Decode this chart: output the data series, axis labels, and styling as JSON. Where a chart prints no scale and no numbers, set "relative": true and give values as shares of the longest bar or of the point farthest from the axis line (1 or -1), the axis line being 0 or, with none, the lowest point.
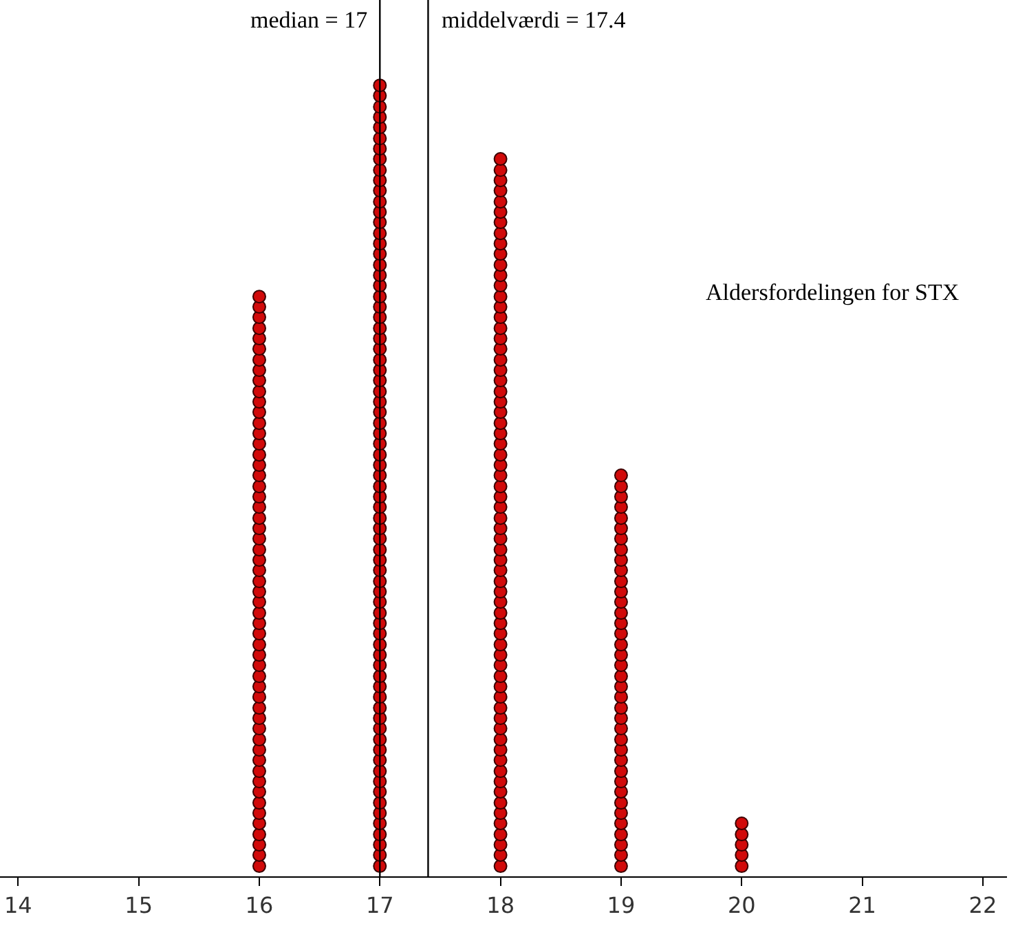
{
  "chart_data": {
    "type": "scatter",
    "relative": true,
    "xlim": [
      13.85,
      22.2
    ],
    "xticks": [
      14,
      15,
      16,
      17,
      18,
      19,
      20,
      21,
      22
    ],
    "marker": "circle",
    "grid": false,
    "annotations": [
      "Aldersfordelingen for STX"
    ],
    "ref_lines": [
      {
        "axis": "x",
        "value": 17,
        "label": "median = 17",
        "color": "#000000"
      },
      {
        "axis": "x",
        "value": 17.4,
        "label": "middelværdi = 17.4",
        "color": "#000000"
      }
    ],
    "series": [
      {
        "color": "#d10a0a",
        "x": [
          16,
          16,
          16,
          16,
          16,
          16,
          16,
          16,
          16,
          16,
          16,
          16,
          16,
          16,
          16,
          16,
          16,
          16,
          16,
          16,
          16,
          16,
          16,
          16,
          16,
          16,
          16,
          16,
          16,
          16,
          16,
          16,
          16,
          16,
          16,
          16,
          16,
          16,
          16,
          16,
          16,
          16,
          16,
          16,
          16,
          16,
          16,
          16,
          16,
          16,
          16,
          16,
          16,
          16,
          16
        ],
        "values": [
          0.013,
          0.027,
          0.04,
          0.053,
          0.067,
          0.08,
          0.093,
          0.107,
          0.12,
          0.133,
          0.147,
          0.16,
          0.173,
          0.187,
          0.2,
          0.213,
          0.227,
          0.24,
          0.253,
          0.267,
          0.28,
          0.293,
          0.307,
          0.32,
          0.333,
          0.347,
          0.36,
          0.373,
          0.387,
          0.4,
          0.413,
          0.427,
          0.44,
          0.453,
          0.467,
          0.48,
          0.493,
          0.507,
          0.52,
          0.533,
          0.547,
          0.56,
          0.573,
          0.587,
          0.6,
          0.613,
          0.627,
          0.64,
          0.653,
          0.667,
          0.68,
          0.693,
          0.707,
          0.72,
          0.733
        ]
      },
      {
        "color": "#d10a0a",
        "x": [
          17,
          17,
          17,
          17,
          17,
          17,
          17,
          17,
          17,
          17,
          17,
          17,
          17,
          17,
          17,
          17,
          17,
          17,
          17,
          17,
          17,
          17,
          17,
          17,
          17,
          17,
          17,
          17,
          17,
          17,
          17,
          17,
          17,
          17,
          17,
          17,
          17,
          17,
          17,
          17,
          17,
          17,
          17,
          17,
          17,
          17,
          17,
          17,
          17,
          17,
          17,
          17,
          17,
          17,
          17,
          17,
          17,
          17,
          17,
          17,
          17,
          17,
          17,
          17,
          17,
          17,
          17,
          17,
          17,
          17,
          17,
          17,
          17,
          17,
          17
        ],
        "values": [
          0.013,
          0.027,
          0.04,
          0.053,
          0.067,
          0.08,
          0.093,
          0.107,
          0.12,
          0.133,
          0.147,
          0.16,
          0.173,
          0.187,
          0.2,
          0.213,
          0.227,
          0.24,
          0.253,
          0.267,
          0.28,
          0.293,
          0.307,
          0.32,
          0.333,
          0.347,
          0.36,
          0.373,
          0.387,
          0.4,
          0.413,
          0.427,
          0.44,
          0.453,
          0.467,
          0.48,
          0.493,
          0.507,
          0.52,
          0.533,
          0.547,
          0.56,
          0.573,
          0.587,
          0.6,
          0.613,
          0.627,
          0.64,
          0.653,
          0.667,
          0.68,
          0.693,
          0.707,
          0.72,
          0.733,
          0.747,
          0.76,
          0.773,
          0.787,
          0.8,
          0.813,
          0.827,
          0.84,
          0.853,
          0.867,
          0.88,
          0.893,
          0.907,
          0.92,
          0.933,
          0.947,
          0.96,
          0.973,
          0.987,
          1
        ]
      },
      {
        "color": "#d10a0a",
        "x": [
          18,
          18,
          18,
          18,
          18,
          18,
          18,
          18,
          18,
          18,
          18,
          18,
          18,
          18,
          18,
          18,
          18,
          18,
          18,
          18,
          18,
          18,
          18,
          18,
          18,
          18,
          18,
          18,
          18,
          18,
          18,
          18,
          18,
          18,
          18,
          18,
          18,
          18,
          18,
          18,
          18,
          18,
          18,
          18,
          18,
          18,
          18,
          18,
          18,
          18,
          18,
          18,
          18,
          18,
          18,
          18,
          18,
          18,
          18,
          18,
          18,
          18,
          18,
          18,
          18,
          18,
          18,
          18
        ],
        "values": [
          0.013,
          0.027,
          0.04,
          0.053,
          0.067,
          0.08,
          0.093,
          0.107,
          0.12,
          0.133,
          0.147,
          0.16,
          0.173,
          0.187,
          0.2,
          0.213,
          0.227,
          0.24,
          0.253,
          0.267,
          0.28,
          0.293,
          0.307,
          0.32,
          0.333,
          0.347,
          0.36,
          0.373,
          0.387,
          0.4,
          0.413,
          0.427,
          0.44,
          0.453,
          0.467,
          0.48,
          0.493,
          0.507,
          0.52,
          0.533,
          0.547,
          0.56,
          0.573,
          0.587,
          0.6,
          0.613,
          0.627,
          0.64,
          0.653,
          0.667,
          0.68,
          0.693,
          0.707,
          0.72,
          0.733,
          0.747,
          0.76,
          0.773,
          0.787,
          0.8,
          0.813,
          0.827,
          0.84,
          0.853,
          0.867,
          0.88,
          0.893,
          0.907
        ]
      },
      {
        "color": "#d10a0a",
        "x": [
          19,
          19,
          19,
          19,
          19,
          19,
          19,
          19,
          19,
          19,
          19,
          19,
          19,
          19,
          19,
          19,
          19,
          19,
          19,
          19,
          19,
          19,
          19,
          19,
          19,
          19,
          19,
          19,
          19,
          19,
          19,
          19,
          19,
          19,
          19,
          19,
          19,
          19
        ],
        "values": [
          0.013,
          0.027,
          0.04,
          0.053,
          0.067,
          0.08,
          0.093,
          0.107,
          0.12,
          0.133,
          0.147,
          0.16,
          0.173,
          0.187,
          0.2,
          0.213,
          0.227,
          0.24,
          0.253,
          0.267,
          0.28,
          0.293,
          0.307,
          0.32,
          0.333,
          0.347,
          0.36,
          0.373,
          0.387,
          0.4,
          0.413,
          0.427,
          0.44,
          0.453,
          0.467,
          0.48,
          0.493,
          0.507
        ]
      },
      {
        "color": "#d10a0a",
        "x": [
          20,
          20,
          20,
          20,
          20
        ],
        "values": [
          0.013,
          0.027,
          0.04,
          0.053,
          0.067
        ]
      }
    ]
  }
}
